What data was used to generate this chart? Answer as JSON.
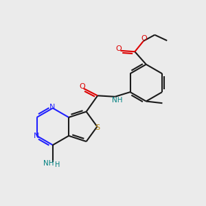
{
  "bg_color": "#ebebeb",
  "bond_color": "#1a1a1a",
  "N_color": "#2020ff",
  "S_color": "#b8860b",
  "O_color": "#dd0000",
  "NH_color": "#008080",
  "lw": 1.5,
  "figsize": [
    3.0,
    3.0
  ],
  "dpi": 100,
  "xlim": [
    0,
    10
  ],
  "ylim": [
    0,
    10
  ],
  "BL": 0.9,
  "dbl_sep": 0.1
}
